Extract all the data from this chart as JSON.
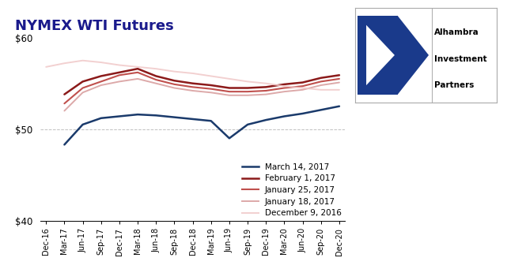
{
  "title": "NYMEX WTI Futures",
  "title_color": "#1a1a8c",
  "ylim": [
    40,
    60
  ],
  "yticks": [
    40,
    50,
    60
  ],
  "ytick_labels": [
    "$40",
    "$50",
    "$60"
  ],
  "background_color": "#ffffff",
  "x_labels": [
    "Dec-16",
    "Mar-17",
    "Jun-17",
    "Sep-17",
    "Dec-17",
    "Mar-18",
    "Jun-18",
    "Sep-18",
    "Dec-18",
    "Mar-19",
    "Jun-19",
    "Sep-19",
    "Dec-19",
    "Mar-20",
    "Jun-20",
    "Sep-20",
    "Dec-20"
  ],
  "series": [
    {
      "label": "March 14, 2017",
      "color": "#1a3a6b",
      "linewidth": 1.8,
      "alpha": 1.0,
      "data": [
        null,
        48.3,
        50.5,
        51.2,
        51.4,
        51.6,
        51.5,
        51.3,
        51.1,
        50.9,
        49.0,
        50.5,
        51.0,
        51.4,
        51.7,
        52.1,
        52.5
      ]
    },
    {
      "label": "February 1, 2017",
      "color": "#8b1a1a",
      "linewidth": 1.8,
      "alpha": 1.0,
      "data": [
        null,
        53.8,
        55.2,
        55.8,
        56.2,
        56.6,
        55.8,
        55.3,
        55.0,
        54.8,
        54.5,
        54.5,
        54.6,
        54.9,
        55.1,
        55.6,
        55.9
      ]
    },
    {
      "label": "January 25, 2017",
      "color": "#c0504d",
      "linewidth": 1.5,
      "alpha": 1.0,
      "data": [
        null,
        52.8,
        54.5,
        55.2,
        55.9,
        56.2,
        55.4,
        54.9,
        54.6,
        54.4,
        54.1,
        54.1,
        54.2,
        54.5,
        54.7,
        55.2,
        55.5
      ]
    },
    {
      "label": "January 18, 2017",
      "color": "#d9a0a0",
      "linewidth": 1.4,
      "alpha": 0.9,
      "data": [
        null,
        52.0,
        54.0,
        54.8,
        55.2,
        55.5,
        55.0,
        54.5,
        54.2,
        54.0,
        53.7,
        53.7,
        53.8,
        54.1,
        54.3,
        54.8,
        55.1
      ]
    },
    {
      "label": "December 9, 2016",
      "color": "#f0c8c8",
      "linewidth": 1.4,
      "alpha": 0.85,
      "data": [
        56.8,
        57.2,
        57.5,
        57.3,
        57.0,
        56.8,
        56.6,
        56.3,
        56.1,
        55.8,
        55.5,
        55.2,
        55.0,
        54.7,
        54.5,
        54.3,
        54.3
      ]
    }
  ]
}
